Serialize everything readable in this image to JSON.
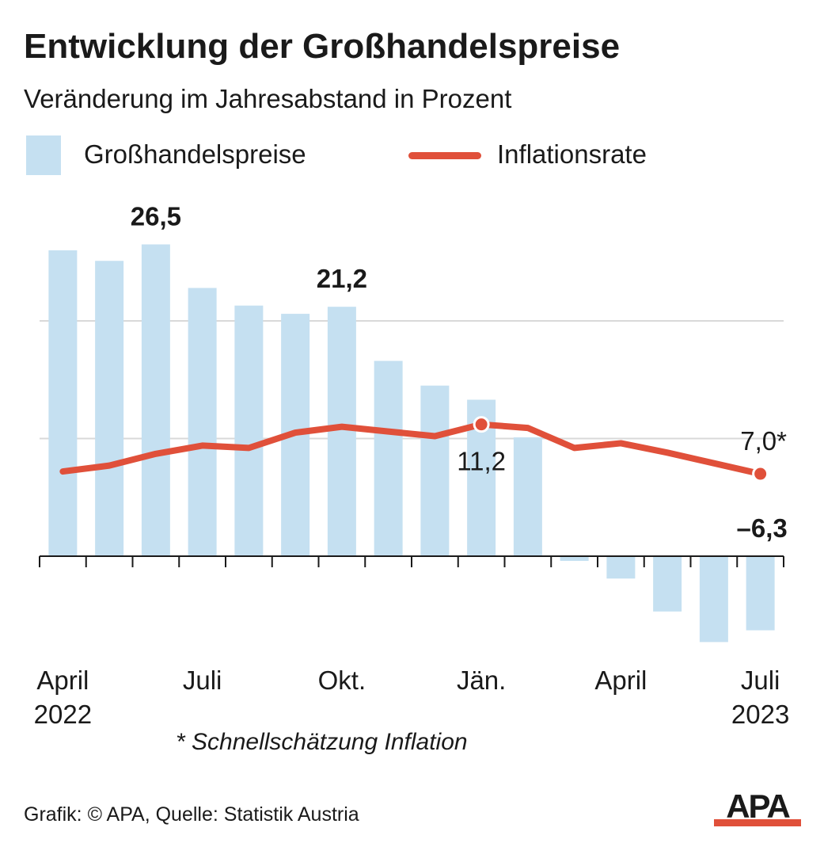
{
  "title": "Entwicklung der Großhandelspreise",
  "subtitle": "Veränderung im Jahresabstand in Prozent",
  "legend": {
    "bars_label": "Großhandelspreise",
    "line_label": "Inflationsrate"
  },
  "footnote": "* Schnellschätzung Inflation",
  "source": "Grafik: © APA, Quelle: Statistik Austria",
  "logo_text": "APA",
  "colors": {
    "bars": "#c5e0f1",
    "line": "#e0503a",
    "grid": "#d9d9d9",
    "text": "#1a1a1a"
  },
  "chart_data": {
    "type": "bar+line",
    "months": [
      "2022-04",
      "2022-05",
      "2022-06",
      "2022-07",
      "2022-08",
      "2022-09",
      "2022-10",
      "2022-11",
      "2022-12",
      "2023-01",
      "2023-02",
      "2023-03",
      "2023-04",
      "2023-05",
      "2023-06",
      "2023-07"
    ],
    "x_tick_labels": [
      {
        "index": 0,
        "lines": [
          "April",
          "2022"
        ]
      },
      {
        "index": 3,
        "lines": [
          "Juli"
        ]
      },
      {
        "index": 6,
        "lines": [
          "Okt."
        ]
      },
      {
        "index": 9,
        "lines": [
          "Jän."
        ]
      },
      {
        "index": 12,
        "lines": [
          "April"
        ]
      },
      {
        "index": 15,
        "lines": [
          "Juli",
          "2023"
        ]
      }
    ],
    "ylim": [
      -8,
      28
    ],
    "gridlines": [
      10,
      20
    ],
    "series": [
      {
        "name": "Großhandelspreise",
        "kind": "bar",
        "values": [
          26.0,
          25.1,
          26.5,
          22.8,
          21.3,
          20.6,
          21.2,
          16.6,
          14.5,
          13.3,
          10.1,
          -0.4,
          -1.9,
          -4.7,
          -7.3,
          -6.3
        ]
      },
      {
        "name": "Inflationsrate",
        "kind": "line",
        "values": [
          7.2,
          7.7,
          8.7,
          9.4,
          9.2,
          10.5,
          11.0,
          10.6,
          10.2,
          11.2,
          10.9,
          9.2,
          9.6,
          8.8,
          7.9,
          7.0
        ]
      }
    ],
    "annotations": [
      {
        "series": "Großhandelspreise",
        "index": 2,
        "text": "26,5",
        "bold": true
      },
      {
        "series": "Großhandelspreise",
        "index": 6,
        "text": "21,2",
        "bold": true
      },
      {
        "series": "Großhandelspreise",
        "index": 15,
        "text": "–6,3",
        "bold": true
      },
      {
        "series": "Inflationsrate",
        "index": 9,
        "text": "11,2",
        "bold": false
      },
      {
        "series": "Inflationsrate",
        "index": 15,
        "text": "7,0*",
        "bold": false
      }
    ]
  }
}
